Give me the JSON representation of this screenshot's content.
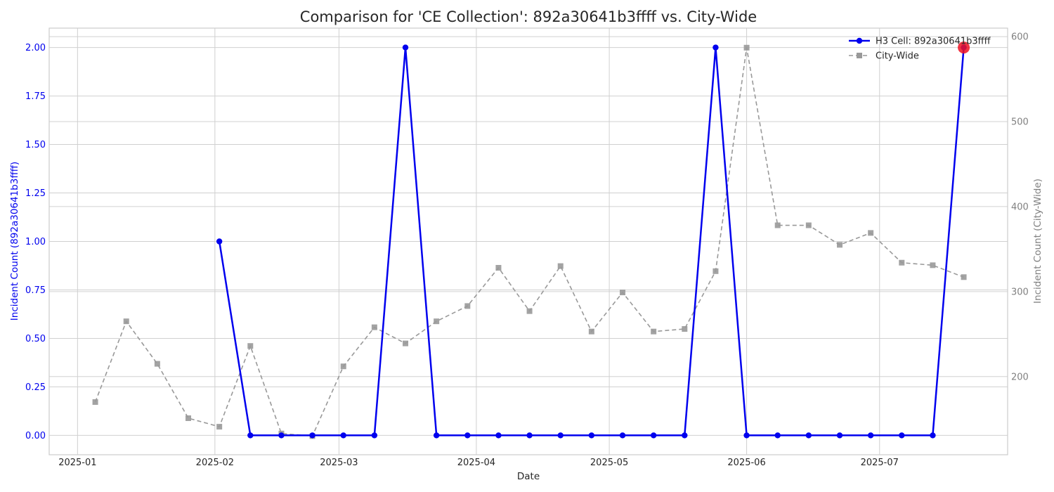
{
  "chart_data": {
    "type": "line",
    "title": "Comparison for 'CE Collection': 892a30641b3ffff vs. City-Wide",
    "xlabel": "Date",
    "ylabel_left": "Incident Count (892a30641b3ffff)",
    "ylabel_right": "Incident Count (City-Wide)",
    "x_ticks": [
      "2025-01",
      "2025-02",
      "2025-03",
      "2025-04",
      "2025-05",
      "2025-06",
      "2025-07"
    ],
    "y_left_ticks": [
      "0.00",
      "0.25",
      "0.50",
      "0.75",
      "1.00",
      "1.25",
      "1.50",
      "1.75",
      "2.00"
    ],
    "y_right_ticks": [
      "200",
      "300",
      "400",
      "500",
      "600"
    ],
    "ylim_left": [
      -0.1,
      2.1
    ],
    "ylim_right": [
      108,
      610
    ],
    "grid": true,
    "legend_position": "top-right",
    "x_dates": [
      "2025-01-05",
      "2025-01-12",
      "2025-01-19",
      "2025-01-26",
      "2025-02-02",
      "2025-02-09",
      "2025-02-16",
      "2025-02-23",
      "2025-03-02",
      "2025-03-09",
      "2025-03-16",
      "2025-03-23",
      "2025-03-30",
      "2025-04-06",
      "2025-04-13",
      "2025-04-20",
      "2025-04-27",
      "2025-05-04",
      "2025-05-11",
      "2025-05-18",
      "2025-05-25",
      "2025-06-01",
      "2025-06-08",
      "2025-06-15",
      "2025-06-22",
      "2025-06-29",
      "2025-07-06",
      "2025-07-13",
      "2025-07-20"
    ],
    "series": [
      {
        "name": "H3 Cell: 892a30641b3ffff",
        "axis": "left",
        "color": "#0000ee",
        "values": [
          null,
          null,
          null,
          null,
          1,
          0,
          0,
          0,
          0,
          0,
          2,
          0,
          0,
          0,
          0,
          0,
          0,
          0,
          0,
          0,
          2,
          0,
          0,
          0,
          0,
          0,
          0,
          0,
          2
        ]
      },
      {
        "name": "City-Wide",
        "axis": "right",
        "color": "#999999",
        "values": [
          170,
          265,
          215,
          151,
          141,
          236,
          133,
          130,
          212,
          258,
          239,
          265,
          283,
          328,
          277,
          330,
          253,
          299,
          253,
          256,
          324,
          587,
          378,
          378,
          355,
          369,
          334,
          331,
          317
        ]
      }
    ],
    "highlight": {
      "series": 0,
      "index": 28,
      "color": "#ee1122"
    }
  }
}
